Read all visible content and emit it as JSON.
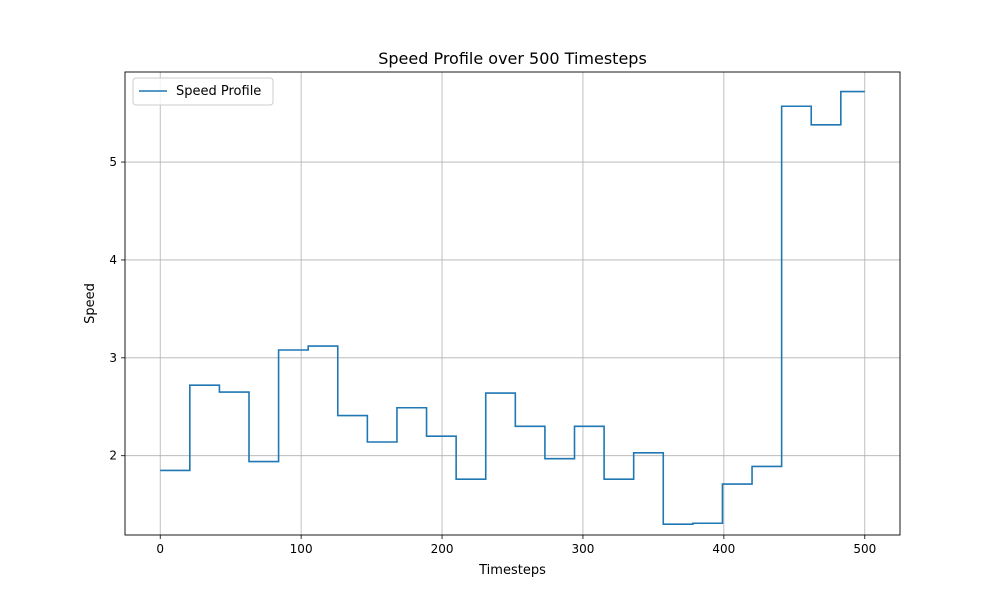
{
  "chart_data": {
    "type": "line",
    "title": "Speed Profile over 500 Timesteps",
    "xlabel": "Timesteps",
    "ylabel": "Speed",
    "xlim": [
      -25,
      525
    ],
    "ylim": [
      1.19,
      5.92
    ],
    "xticks": [
      0,
      100,
      200,
      300,
      400,
      500
    ],
    "yticks": [
      2,
      3,
      4,
      5
    ],
    "grid": true,
    "legend_position": "top-left",
    "series": [
      {
        "name": "Speed Profile",
        "color": "#1f77b4",
        "step_x": [
          0,
          21,
          42,
          63,
          84,
          105,
          126,
          147,
          168,
          189,
          210,
          231,
          252,
          273,
          294,
          315,
          336,
          357,
          378,
          399,
          420,
          441,
          462,
          483,
          500
        ],
        "step_y": [
          1.85,
          2.72,
          2.65,
          1.94,
          3.08,
          3.12,
          2.41,
          2.14,
          2.49,
          2.2,
          1.76,
          2.64,
          2.3,
          1.97,
          2.3,
          1.76,
          2.03,
          1.3,
          1.31,
          1.71,
          1.89,
          5.57,
          5.38,
          5.72
        ]
      }
    ]
  }
}
